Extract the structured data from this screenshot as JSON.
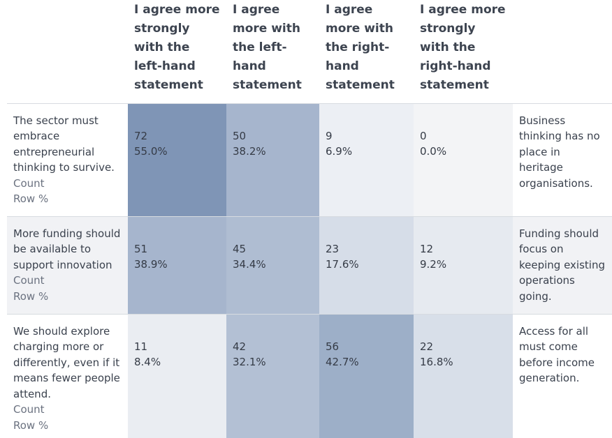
{
  "table": {
    "columns": [
      "I agree more strongly with the left-hand statement",
      "I agree more with the left-hand statement",
      "I agree more with the right-hand statement",
      "I agree more strongly with the right-hand statement"
    ],
    "count_label": "Count",
    "rowpct_label": "Row %",
    "rows": [
      {
        "left_statement": "The sector must embrace entrepreneurial thinking to survive.",
        "right_statement": "Business thinking has no place in heritage organisations.",
        "cells": [
          {
            "count": "72",
            "pct": "55.0%",
            "color": "#7f95b6"
          },
          {
            "count": "50",
            "pct": "38.2%",
            "color": "#a6b5cd"
          },
          {
            "count": "9",
            "pct": "6.9%",
            "color": "#eceff4"
          },
          {
            "count": "0",
            "pct": "0.0%",
            "color": "#f3f4f6"
          }
        ]
      },
      {
        "left_statement": "More funding should be available to support innovation",
        "right_statement": "Funding should focus on keeping existing operations going.",
        "cells": [
          {
            "count": "51",
            "pct": "38.9%",
            "color": "#a6b5cd"
          },
          {
            "count": "45",
            "pct": "34.4%",
            "color": "#afbdd2"
          },
          {
            "count": "23",
            "pct": "17.6%",
            "color": "#d6dde8"
          },
          {
            "count": "12",
            "pct": "9.2%",
            "color": "#e6eaf0"
          }
        ]
      },
      {
        "left_statement": "We should explore charging more or differently, even if it means fewer people attend.",
        "right_statement": "Access for all must come before income generation.",
        "cells": [
          {
            "count": "11",
            "pct": "8.4%",
            "color": "#eaedf2"
          },
          {
            "count": "42",
            "pct": "32.1%",
            "color": "#b3c0d4"
          },
          {
            "count": "56",
            "pct": "42.7%",
            "color": "#9dafc8"
          },
          {
            "count": "22",
            "pct": "16.8%",
            "color": "#d8dfe9"
          }
        ]
      }
    ]
  }
}
